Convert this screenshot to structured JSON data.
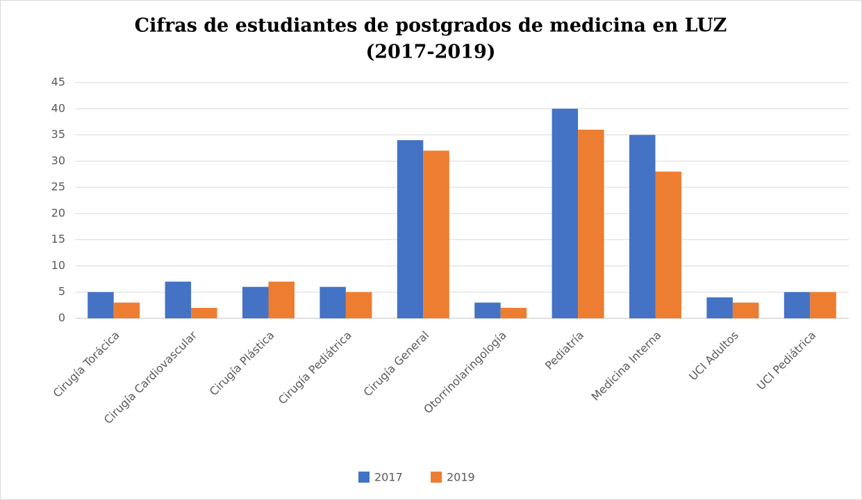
{
  "chart_data": {
    "type": "bar",
    "title": [
      "Cifras de estudiantes de postgrados de medicina en LUZ",
      "(2017-2019)"
    ],
    "categories": [
      "Cirugía Torácica",
      "Cirugía Cardiovascular",
      "Cirugía Plástica",
      "Cirugía Pediátrica",
      "Cirugía General",
      "Otorrinolaringología",
      "Pediatría",
      "Medicina Interna",
      "UCI Adultos",
      "UCI Pediátrica"
    ],
    "series": [
      {
        "name": "2017",
        "color": "#4472c4",
        "values": [
          5,
          7,
          6,
          6,
          34,
          3,
          40,
          35,
          4,
          5
        ]
      },
      {
        "name": "2019",
        "color": "#ed7d31",
        "values": [
          3,
          2,
          7,
          5,
          32,
          2,
          36,
          28,
          3,
          5
        ]
      }
    ],
    "ylim": [
      0,
      45
    ],
    "yticks": [
      0,
      5,
      10,
      15,
      20,
      25,
      30,
      35,
      40,
      45
    ],
    "grid": true,
    "legend": "bottom"
  }
}
